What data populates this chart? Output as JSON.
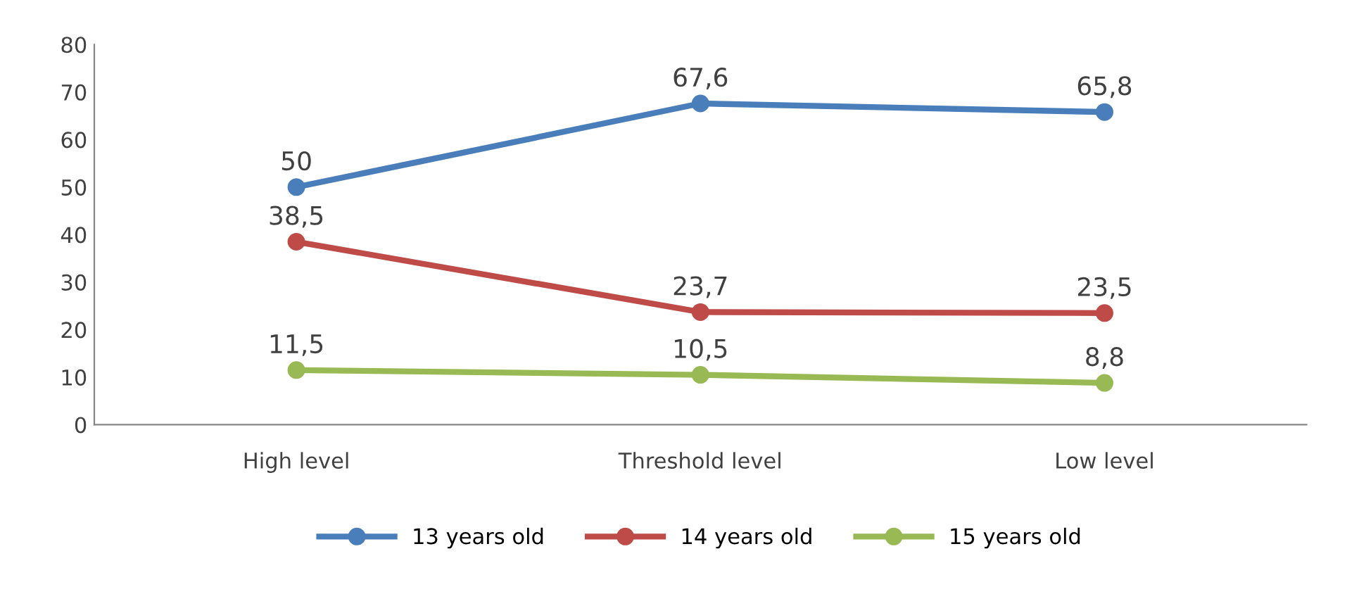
{
  "chart_data": {
    "type": "line",
    "categories": [
      "High level",
      "Threshold level",
      "Low level"
    ],
    "series": [
      {
        "name": "13 years old",
        "color": "#4a7ebb",
        "values": [
          50,
          67.6,
          65.8
        ],
        "value_labels": [
          "50",
          "67,6",
          "65,8"
        ]
      },
      {
        "name": "14 years old",
        "color": "#be4b48",
        "values": [
          38.5,
          23.7,
          23.5
        ],
        "value_labels": [
          "38,5",
          "23,7",
          "23,5"
        ]
      },
      {
        "name": "15 years old",
        "color": "#98b954",
        "values": [
          11.5,
          10.5,
          8.8
        ],
        "value_labels": [
          "11,5",
          "10,5",
          "8,8"
        ]
      }
    ],
    "ylim": [
      0,
      80
    ],
    "yticks": [
      0,
      10,
      20,
      30,
      40,
      50,
      60,
      70,
      80
    ],
    "grid": false,
    "legend": "bottom",
    "marker": "circle",
    "line_style": "solid"
  }
}
